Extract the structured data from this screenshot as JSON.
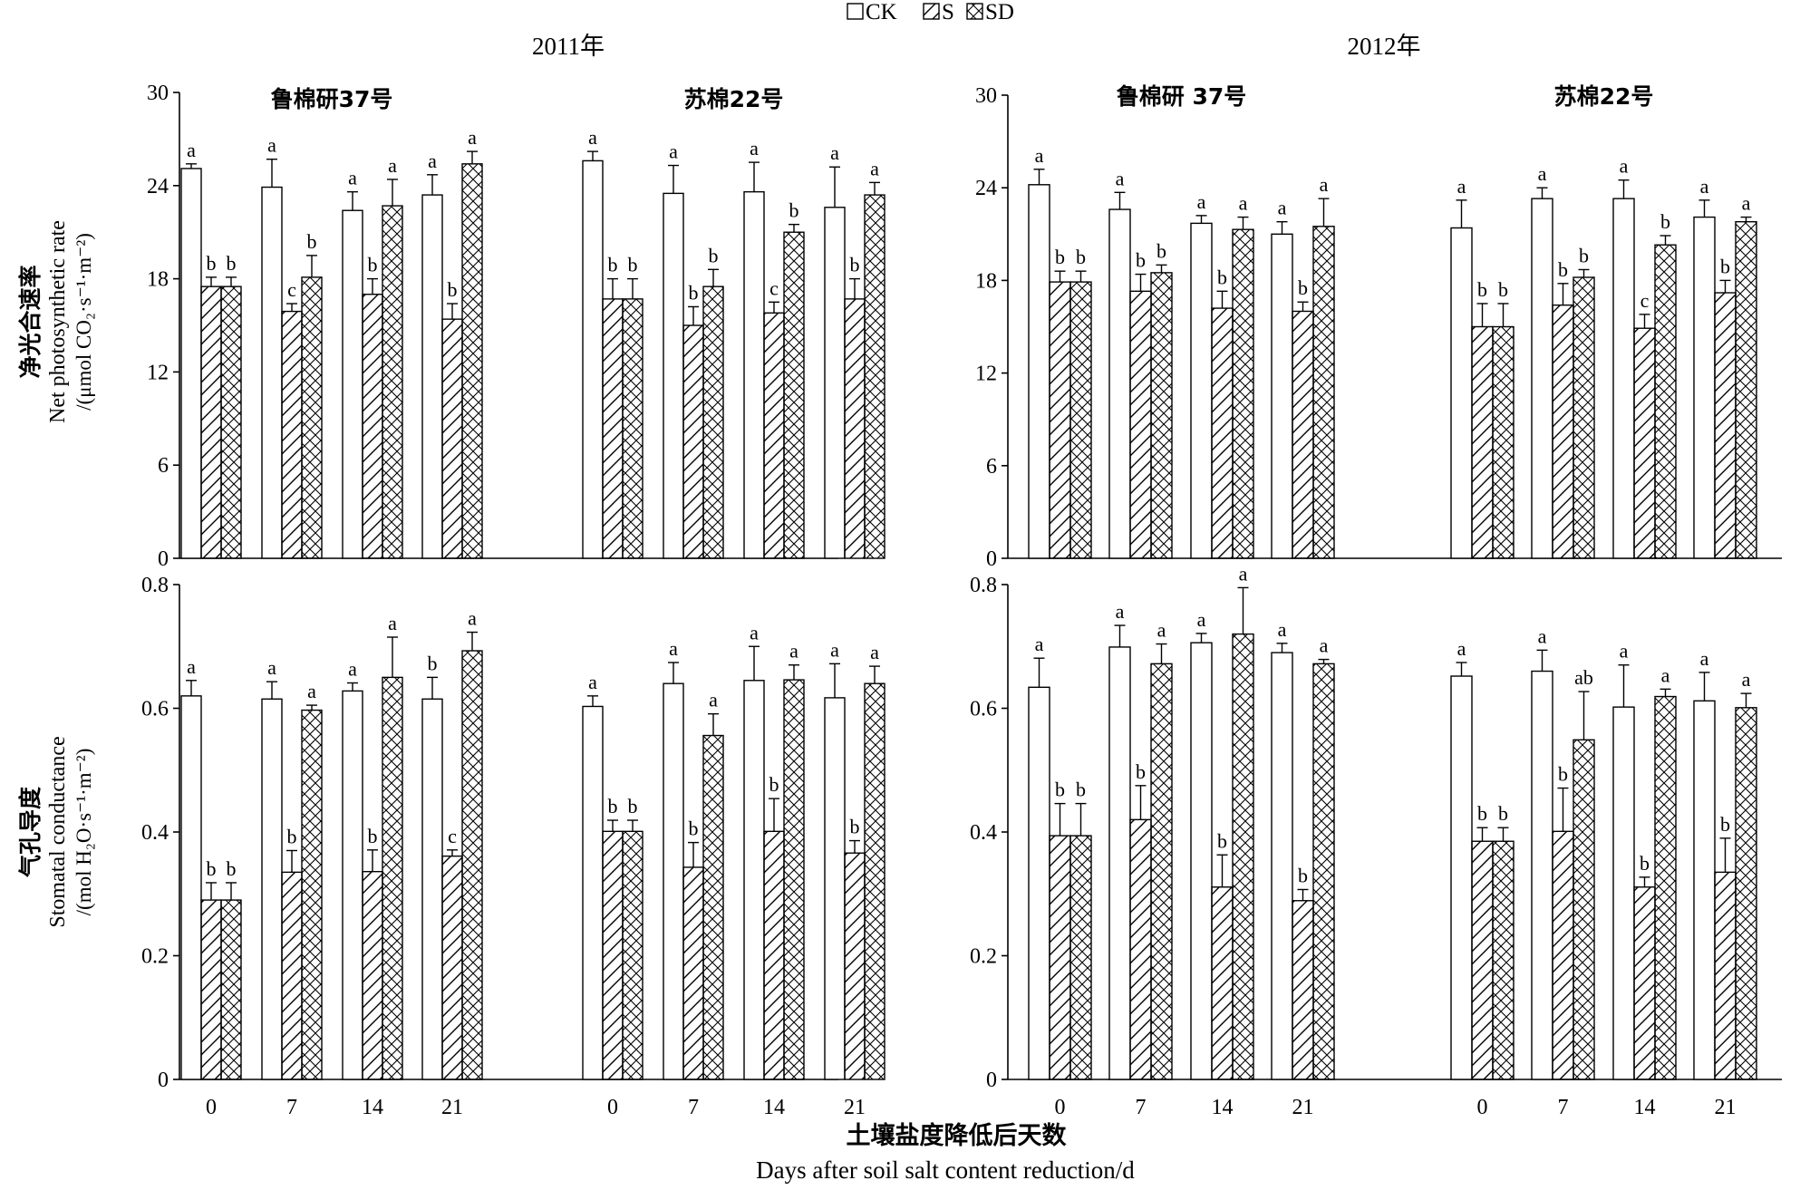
{
  "legend": {
    "items": [
      {
        "key": "CK",
        "label": "CK",
        "pattern": "none"
      },
      {
        "key": "S",
        "label": "S",
        "pattern": "diagonal"
      },
      {
        "key": "SD",
        "label": "SD",
        "pattern": "crosshatch"
      }
    ]
  },
  "years": [
    "2011年",
    "2012年"
  ],
  "row_labels": {
    "pn": {
      "zh": "净光合速率",
      "en": "Net photosynthetic rate",
      "unit": "/(μmol CO₂·s⁻¹·m⁻²)"
    },
    "gs": {
      "zh": "气孔导度",
      "en": "Stomatal conductance",
      "unit": "/(mol H₂O·s⁻¹·m⁻²)"
    }
  },
  "xaxis": {
    "label_zh": "土壤盐度降低后天数",
    "label_en": "Days after soil salt content reduction/d"
  },
  "chart_data": [
    {
      "type": "bar",
      "year": "2011年",
      "variable": "pn",
      "ylim": [
        0,
        30
      ],
      "yticks": [
        "0",
        "6",
        "12",
        "18",
        "24",
        "30"
      ],
      "cultivars": [
        {
          "name": "鲁棉研37号",
          "categories": [
            "0",
            "7",
            "14",
            "21"
          ],
          "series": [
            {
              "name": "CK",
              "values": [
                25.1,
                23.9,
                22.4,
                23.4
              ],
              "errors": [
                0.3,
                1.8,
                1.2,
                1.3
              ],
              "letters": [
                "a",
                "a",
                "a",
                "a"
              ]
            },
            {
              "name": "S",
              "values": [
                17.5,
                15.9,
                17.0,
                15.4
              ],
              "errors": [
                0.6,
                0.5,
                1.0,
                1.0
              ],
              "letters": [
                "b",
                "c",
                "b",
                "b"
              ]
            },
            {
              "name": "SD",
              "values": [
                17.5,
                18.1,
                22.7,
                25.4
              ],
              "errors": [
                0.6,
                1.4,
                1.7,
                0.8
              ],
              "letters": [
                "b",
                "b",
                "a",
                "a"
              ]
            }
          ]
        },
        {
          "name": "苏棉22号",
          "categories": [
            "0",
            "7",
            "14",
            "21"
          ],
          "series": [
            {
              "name": "CK",
              "values": [
                25.6,
                23.5,
                23.6,
                22.6
              ],
              "errors": [
                0.6,
                1.8,
                1.9,
                2.6
              ],
              "letters": [
                "a",
                "a",
                "a",
                "a"
              ]
            },
            {
              "name": "S",
              "values": [
                16.7,
                15.0,
                15.8,
                16.7
              ],
              "errors": [
                1.3,
                1.2,
                0.7,
                1.3
              ],
              "letters": [
                "b",
                "b",
                "c",
                "b"
              ]
            },
            {
              "name": "SD",
              "values": [
                16.7,
                17.5,
                21.0,
                23.4
              ],
              "errors": [
                1.3,
                1.1,
                0.5,
                0.8
              ],
              "letters": [
                "b",
                "b",
                "b",
                "a"
              ]
            }
          ]
        }
      ]
    },
    {
      "type": "bar",
      "year": "2011年",
      "variable": "gs",
      "ylim": [
        0,
        0.8
      ],
      "yticks": [
        "0",
        "0.2",
        "0.4",
        "0.6",
        "0.8"
      ],
      "cultivars": [
        {
          "name": "鲁棉研37号",
          "categories": [
            "0",
            "7",
            "14",
            "21"
          ],
          "series": [
            {
              "name": "CK",
              "values": [
                0.62,
                0.615,
                0.628,
                0.615
              ],
              "errors": [
                0.025,
                0.028,
                0.013,
                0.035
              ],
              "letters": [
                "a",
                "a",
                "a",
                "b"
              ]
            },
            {
              "name": "S",
              "values": [
                0.29,
                0.335,
                0.336,
                0.361
              ],
              "errors": [
                0.028,
                0.035,
                0.035,
                0.01
              ],
              "letters": [
                "b",
                "b",
                "b",
                "c"
              ]
            },
            {
              "name": "SD",
              "values": [
                0.29,
                0.597,
                0.65,
                0.693
              ],
              "errors": [
                0.028,
                0.008,
                0.065,
                0.03
              ],
              "letters": [
                "b",
                "a",
                "a",
                "a"
              ]
            }
          ]
        },
        {
          "name": "苏棉22号",
          "categories": [
            "0",
            "7",
            "14",
            "21"
          ],
          "series": [
            {
              "name": "CK",
              "values": [
                0.603,
                0.64,
                0.645,
                0.617
              ],
              "errors": [
                0.017,
                0.034,
                0.055,
                0.055
              ],
              "letters": [
                "a",
                "a",
                "a",
                "a"
              ]
            },
            {
              "name": "S",
              "values": [
                0.401,
                0.343,
                0.401,
                0.366
              ],
              "errors": [
                0.018,
                0.04,
                0.053,
                0.02
              ],
              "letters": [
                "b",
                "b",
                "b",
                "b"
              ]
            },
            {
              "name": "SD",
              "values": [
                0.401,
                0.556,
                0.646,
                0.64
              ],
              "errors": [
                0.018,
                0.035,
                0.024,
                0.028
              ],
              "letters": [
                "b",
                "a",
                "a",
                "a"
              ]
            }
          ]
        }
      ]
    },
    {
      "type": "bar",
      "year": "2012年",
      "variable": "pn",
      "ylim": [
        0,
        30
      ],
      "yticks": [
        "0",
        "6",
        "12",
        "18",
        "24",
        "30"
      ],
      "cultivars": [
        {
          "name": "鲁棉研 37号",
          "categories": [
            "0",
            "7",
            "14",
            "21"
          ],
          "series": [
            {
              "name": "CK",
              "values": [
                24.2,
                22.6,
                21.7,
                21.0
              ],
              "errors": [
                1.0,
                1.1,
                0.5,
                0.8
              ],
              "letters": [
                "a",
                "a",
                "a",
                "a"
              ]
            },
            {
              "name": "S",
              "values": [
                17.9,
                17.3,
                16.2,
                16.0
              ],
              "errors": [
                0.7,
                1.1,
                1.1,
                0.6
              ],
              "letters": [
                "b",
                "b",
                "b",
                "b"
              ]
            },
            {
              "name": "SD",
              "values": [
                17.9,
                18.5,
                21.3,
                21.5
              ],
              "errors": [
                0.7,
                0.5,
                0.8,
                1.8
              ],
              "letters": [
                "b",
                "b",
                "a",
                "a"
              ]
            }
          ]
        },
        {
          "name": "苏棉22号",
          "categories": [
            "0",
            "7",
            "14",
            "21"
          ],
          "series": [
            {
              "name": "CK",
              "values": [
                21.4,
                23.3,
                23.3,
                22.1
              ],
              "errors": [
                1.8,
                0.7,
                1.2,
                1.1
              ],
              "letters": [
                "a",
                "a",
                "a",
                "a"
              ]
            },
            {
              "name": "S",
              "values": [
                15.0,
                16.4,
                14.9,
                17.2
              ],
              "errors": [
                1.5,
                1.4,
                0.9,
                0.8
              ],
              "letters": [
                "b",
                "b",
                "c",
                "b"
              ]
            },
            {
              "name": "SD",
              "values": [
                15.0,
                18.2,
                20.3,
                21.8
              ],
              "errors": [
                1.5,
                0.5,
                0.6,
                0.3
              ],
              "letters": [
                "b",
                "b",
                "b",
                "a"
              ]
            }
          ]
        }
      ]
    },
    {
      "type": "bar",
      "year": "2012年",
      "variable": "gs",
      "ylim": [
        0,
        0.8
      ],
      "yticks": [
        "0",
        "0.2",
        "0.4",
        "0.6",
        "0.8"
      ],
      "cultivars": [
        {
          "name": "鲁棉研 37号",
          "categories": [
            "0",
            "7",
            "14",
            "21"
          ],
          "series": [
            {
              "name": "CK",
              "values": [
                0.634,
                0.699,
                0.706,
                0.69
              ],
              "errors": [
                0.047,
                0.035,
                0.015,
                0.015
              ],
              "letters": [
                "a",
                "a",
                "a",
                "a"
              ]
            },
            {
              "name": "S",
              "values": [
                0.394,
                0.42,
                0.311,
                0.289
              ],
              "errors": [
                0.052,
                0.055,
                0.052,
                0.018
              ],
              "letters": [
                "b",
                "b",
                "b",
                "b"
              ]
            },
            {
              "name": "SD",
              "values": [
                0.394,
                0.672,
                0.72,
                0.672
              ],
              "errors": [
                0.052,
                0.032,
                0.075,
                0.007
              ],
              "letters": [
                "b",
                "a",
                "a",
                "a"
              ]
            }
          ]
        },
        {
          "name": "苏棉22号",
          "categories": [
            "0",
            "7",
            "14",
            "21"
          ],
          "series": [
            {
              "name": "CK",
              "values": [
                0.652,
                0.66,
                0.602,
                0.612
              ],
              "errors": [
                0.022,
                0.034,
                0.068,
                0.046
              ],
              "letters": [
                "a",
                "a",
                "a",
                "a"
              ]
            },
            {
              "name": "S",
              "values": [
                0.385,
                0.401,
                0.311,
                0.335
              ],
              "errors": [
                0.022,
                0.07,
                0.016,
                0.055
              ],
              "letters": [
                "b",
                "b",
                "b",
                "b"
              ]
            },
            {
              "name": "SD",
              "values": [
                0.385,
                0.549,
                0.619,
                0.601
              ],
              "errors": [
                0.022,
                0.078,
                0.012,
                0.023
              ],
              "letters": [
                "b",
                "ab",
                "a",
                "a"
              ]
            }
          ]
        }
      ]
    }
  ]
}
